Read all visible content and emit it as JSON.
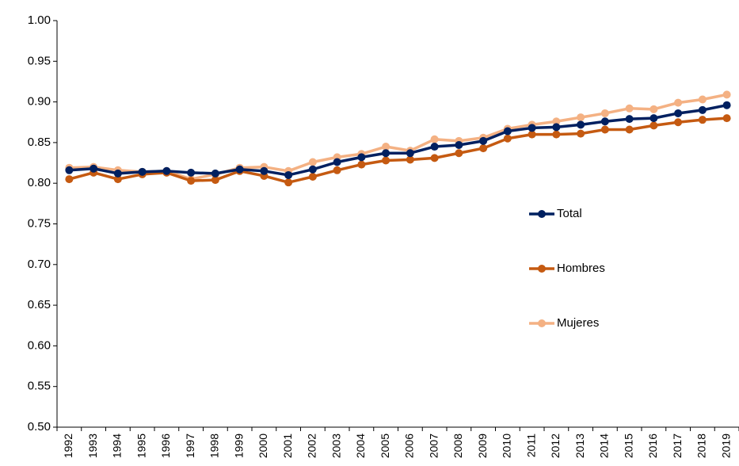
{
  "chart_data": {
    "type": "line",
    "categories": [
      "1992",
      "1993",
      "1994",
      "1995",
      "1996",
      "1997",
      "1998",
      "1999",
      "2000",
      "2001",
      "2002",
      "2003",
      "2004",
      "2005",
      "2006",
      "2007",
      "2008",
      "2009",
      "2010",
      "2011",
      "2012",
      "2013",
      "2014",
      "2015",
      "2016",
      "2017",
      "2018",
      "2019"
    ],
    "series": [
      {
        "name": "Total",
        "color": "#002060",
        "values": [
          0.816,
          0.818,
          0.812,
          0.814,
          0.815,
          0.813,
          0.812,
          0.817,
          0.815,
          0.81,
          0.817,
          0.826,
          0.832,
          0.837,
          0.837,
          0.845,
          0.847,
          0.852,
          0.864,
          0.868,
          0.869,
          0.872,
          0.876,
          0.879,
          0.88,
          0.886,
          0.89,
          0.896
        ]
      },
      {
        "name": "Hombres",
        "color": "#c55a11",
        "values": [
          0.805,
          0.813,
          0.805,
          0.811,
          0.813,
          0.803,
          0.804,
          0.815,
          0.809,
          0.801,
          0.808,
          0.816,
          0.823,
          0.828,
          0.829,
          0.831,
          0.837,
          0.843,
          0.855,
          0.86,
          0.86,
          0.861,
          0.866,
          0.866,
          0.871,
          0.875,
          0.878,
          0.88
        ]
      },
      {
        "name": "Mujeres",
        "color": "#f4b183",
        "values": [
          0.819,
          0.82,
          0.816,
          0.814,
          0.815,
          0.805,
          0.811,
          0.819,
          0.82,
          0.815,
          0.826,
          0.832,
          0.836,
          0.845,
          0.84,
          0.854,
          0.852,
          0.856,
          0.867,
          0.872,
          0.876,
          0.881,
          0.886,
          0.892,
          0.891,
          0.899,
          0.903,
          0.909
        ]
      }
    ],
    "ylim": [
      0.5,
      1.0
    ],
    "yticks": [
      {
        "value": 0.5,
        "label": "0.50"
      },
      0.55,
      {
        "value": 0.6,
        "label": "0.60"
      },
      0.65,
      {
        "value": 0.7,
        "label": "0.70"
      },
      0.75,
      {
        "value": 0.8,
        "label": "0.80"
      },
      0.85,
      {
        "value": 0.9,
        "label": "0.90"
      },
      0.95,
      {
        "value": 1.0,
        "label": "1.00"
      }
    ],
    "grid": false,
    "legend": "right"
  }
}
